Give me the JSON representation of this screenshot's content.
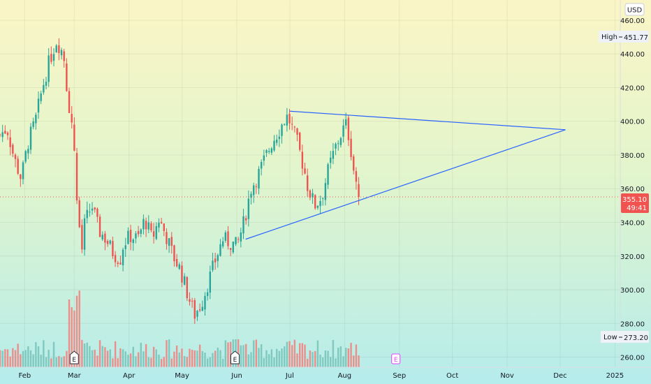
{
  "currency": "USD",
  "high_marker": {
    "label": "High",
    "value": "451.77"
  },
  "low_marker": {
    "label": "Low",
    "value": "273.20"
  },
  "price_marker": {
    "value": "355.10",
    "countdown": "49:41"
  },
  "earnings_marker_label": "E",
  "colors": {
    "up": "#26a69a",
    "down": "#ef5350",
    "vol_up": "#7fc9bf",
    "vol_down": "#ec8f8b",
    "trend": "#2962ff",
    "price_tag": "#f05350",
    "earnings_future": "#e040fb"
  },
  "chart_data": {
    "type": "candlestick",
    "y_axis": {
      "ticks": [
        260,
        280,
        300,
        320,
        340,
        360,
        380,
        400,
        420,
        440,
        460
      ],
      "range": [
        254,
        472
      ]
    },
    "x_axis": {
      "ticks": [
        "Feb",
        "Mar",
        "Apr",
        "May",
        "Jun",
        "Jul",
        "Aug",
        "Sep",
        "Oct",
        "Nov",
        "Dec",
        "2025"
      ],
      "tick_days": [
        0,
        28,
        59,
        89,
        120,
        150,
        181,
        212,
        242,
        273,
        303,
        334
      ],
      "range_days": [
        -14,
        337
      ]
    },
    "last_price": 355.1,
    "high": 451.77,
    "low": 273.2,
    "ohlc_key_points": [
      [
        -14,
        392
      ],
      [
        -10,
        396
      ],
      [
        -6,
        378
      ],
      [
        -2,
        366
      ],
      [
        2,
        388
      ],
      [
        6,
        400
      ],
      [
        10,
        420
      ],
      [
        14,
        436
      ],
      [
        18,
        448
      ],
      [
        22,
        440
      ],
      [
        24,
        418
      ],
      [
        26,
        402
      ],
      [
        28,
        385
      ],
      [
        30,
        345
      ],
      [
        32,
        320
      ],
      [
        34,
        340
      ],
      [
        38,
        350
      ],
      [
        42,
        335
      ],
      [
        46,
        330
      ],
      [
        50,
        322
      ],
      [
        54,
        318
      ],
      [
        56,
        328
      ],
      [
        60,
        332
      ],
      [
        64,
        330
      ],
      [
        68,
        342
      ],
      [
        72,
        330
      ],
      [
        76,
        342
      ],
      [
        80,
        332
      ],
      [
        84,
        320
      ],
      [
        88,
        312
      ],
      [
        92,
        298
      ],
      [
        96,
        285
      ],
      [
        100,
        292
      ],
      [
        104,
        305
      ],
      [
        108,
        318
      ],
      [
        112,
        330
      ],
      [
        116,
        328
      ],
      [
        120,
        326
      ],
      [
        124,
        340
      ],
      [
        128,
        360
      ],
      [
        132,
        368
      ],
      [
        136,
        378
      ],
      [
        140,
        388
      ],
      [
        144,
        395
      ],
      [
        148,
        403
      ],
      [
        150,
        400
      ],
      [
        154,
        388
      ],
      [
        158,
        372
      ],
      [
        160,
        362
      ],
      [
        164,
        350
      ],
      [
        168,
        355
      ],
      [
        172,
        372
      ],
      [
        176,
        385
      ],
      [
        180,
        395
      ],
      [
        182,
        398
      ],
      [
        184,
        388
      ],
      [
        186,
        372
      ],
      [
        188,
        362
      ],
      [
        190,
        355
      ]
    ],
    "trendlines": [
      {
        "from": [
          150,
          406
        ],
        "to": [
          306,
          395
        ]
      },
      {
        "from": [
          125,
          330
        ],
        "to": [
          306,
          395
        ]
      }
    ],
    "earnings_days": [
      28,
      119,
      210
    ]
  }
}
